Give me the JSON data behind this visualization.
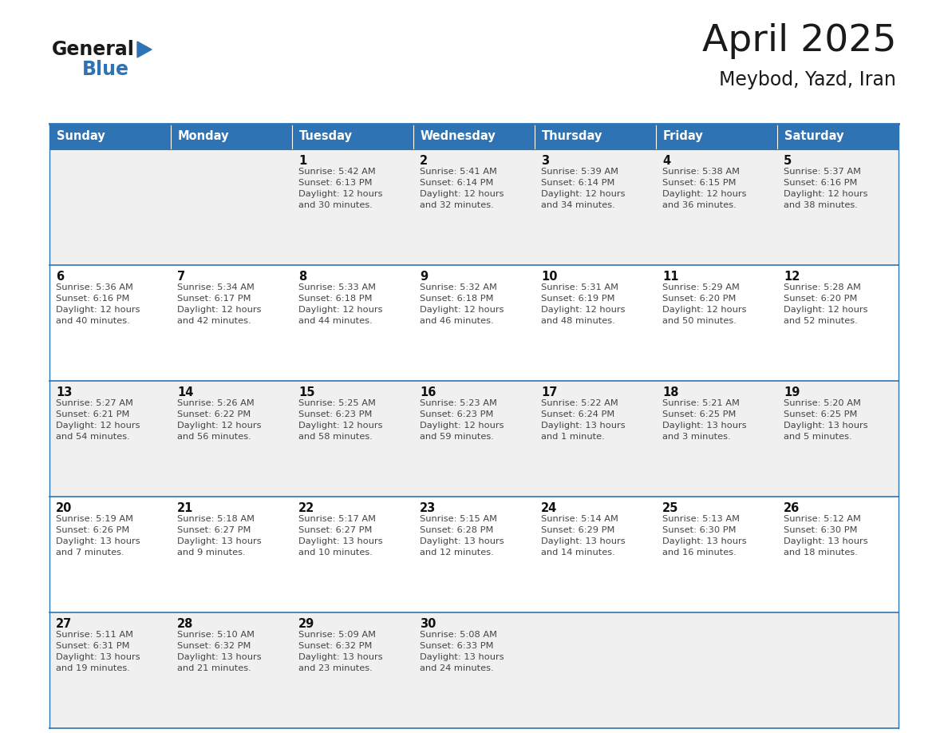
{
  "title": "April 2025",
  "subtitle": "Meybod, Yazd, Iran",
  "days_of_week": [
    "Sunday",
    "Monday",
    "Tuesday",
    "Wednesday",
    "Thursday",
    "Friday",
    "Saturday"
  ],
  "header_bg": "#2E74B5",
  "header_text": "#FFFFFF",
  "row_bg_odd": "#F0F0F0",
  "row_bg_even": "#FFFFFF",
  "cell_text_color": "#444444",
  "day_num_color": "#111111",
  "border_color": "#2E74B5",
  "grid_line_color": "#2E74B5",
  "calendar": [
    [
      {
        "day": null,
        "info": null
      },
      {
        "day": null,
        "info": null
      },
      {
        "day": 1,
        "info": "Sunrise: 5:42 AM\nSunset: 6:13 PM\nDaylight: 12 hours\nand 30 minutes."
      },
      {
        "day": 2,
        "info": "Sunrise: 5:41 AM\nSunset: 6:14 PM\nDaylight: 12 hours\nand 32 minutes."
      },
      {
        "day": 3,
        "info": "Sunrise: 5:39 AM\nSunset: 6:14 PM\nDaylight: 12 hours\nand 34 minutes."
      },
      {
        "day": 4,
        "info": "Sunrise: 5:38 AM\nSunset: 6:15 PM\nDaylight: 12 hours\nand 36 minutes."
      },
      {
        "day": 5,
        "info": "Sunrise: 5:37 AM\nSunset: 6:16 PM\nDaylight: 12 hours\nand 38 minutes."
      }
    ],
    [
      {
        "day": 6,
        "info": "Sunrise: 5:36 AM\nSunset: 6:16 PM\nDaylight: 12 hours\nand 40 minutes."
      },
      {
        "day": 7,
        "info": "Sunrise: 5:34 AM\nSunset: 6:17 PM\nDaylight: 12 hours\nand 42 minutes."
      },
      {
        "day": 8,
        "info": "Sunrise: 5:33 AM\nSunset: 6:18 PM\nDaylight: 12 hours\nand 44 minutes."
      },
      {
        "day": 9,
        "info": "Sunrise: 5:32 AM\nSunset: 6:18 PM\nDaylight: 12 hours\nand 46 minutes."
      },
      {
        "day": 10,
        "info": "Sunrise: 5:31 AM\nSunset: 6:19 PM\nDaylight: 12 hours\nand 48 minutes."
      },
      {
        "day": 11,
        "info": "Sunrise: 5:29 AM\nSunset: 6:20 PM\nDaylight: 12 hours\nand 50 minutes."
      },
      {
        "day": 12,
        "info": "Sunrise: 5:28 AM\nSunset: 6:20 PM\nDaylight: 12 hours\nand 52 minutes."
      }
    ],
    [
      {
        "day": 13,
        "info": "Sunrise: 5:27 AM\nSunset: 6:21 PM\nDaylight: 12 hours\nand 54 minutes."
      },
      {
        "day": 14,
        "info": "Sunrise: 5:26 AM\nSunset: 6:22 PM\nDaylight: 12 hours\nand 56 minutes."
      },
      {
        "day": 15,
        "info": "Sunrise: 5:25 AM\nSunset: 6:23 PM\nDaylight: 12 hours\nand 58 minutes."
      },
      {
        "day": 16,
        "info": "Sunrise: 5:23 AM\nSunset: 6:23 PM\nDaylight: 12 hours\nand 59 minutes."
      },
      {
        "day": 17,
        "info": "Sunrise: 5:22 AM\nSunset: 6:24 PM\nDaylight: 13 hours\nand 1 minute."
      },
      {
        "day": 18,
        "info": "Sunrise: 5:21 AM\nSunset: 6:25 PM\nDaylight: 13 hours\nand 3 minutes."
      },
      {
        "day": 19,
        "info": "Sunrise: 5:20 AM\nSunset: 6:25 PM\nDaylight: 13 hours\nand 5 minutes."
      }
    ],
    [
      {
        "day": 20,
        "info": "Sunrise: 5:19 AM\nSunset: 6:26 PM\nDaylight: 13 hours\nand 7 minutes."
      },
      {
        "day": 21,
        "info": "Sunrise: 5:18 AM\nSunset: 6:27 PM\nDaylight: 13 hours\nand 9 minutes."
      },
      {
        "day": 22,
        "info": "Sunrise: 5:17 AM\nSunset: 6:27 PM\nDaylight: 13 hours\nand 10 minutes."
      },
      {
        "day": 23,
        "info": "Sunrise: 5:15 AM\nSunset: 6:28 PM\nDaylight: 13 hours\nand 12 minutes."
      },
      {
        "day": 24,
        "info": "Sunrise: 5:14 AM\nSunset: 6:29 PM\nDaylight: 13 hours\nand 14 minutes."
      },
      {
        "day": 25,
        "info": "Sunrise: 5:13 AM\nSunset: 6:30 PM\nDaylight: 13 hours\nand 16 minutes."
      },
      {
        "day": 26,
        "info": "Sunrise: 5:12 AM\nSunset: 6:30 PM\nDaylight: 13 hours\nand 18 minutes."
      }
    ],
    [
      {
        "day": 27,
        "info": "Sunrise: 5:11 AM\nSunset: 6:31 PM\nDaylight: 13 hours\nand 19 minutes."
      },
      {
        "day": 28,
        "info": "Sunrise: 5:10 AM\nSunset: 6:32 PM\nDaylight: 13 hours\nand 21 minutes."
      },
      {
        "day": 29,
        "info": "Sunrise: 5:09 AM\nSunset: 6:32 PM\nDaylight: 13 hours\nand 23 minutes."
      },
      {
        "day": 30,
        "info": "Sunrise: 5:08 AM\nSunset: 6:33 PM\nDaylight: 13 hours\nand 24 minutes."
      },
      {
        "day": null,
        "info": null
      },
      {
        "day": null,
        "info": null
      },
      {
        "day": null,
        "info": null
      }
    ]
  ]
}
